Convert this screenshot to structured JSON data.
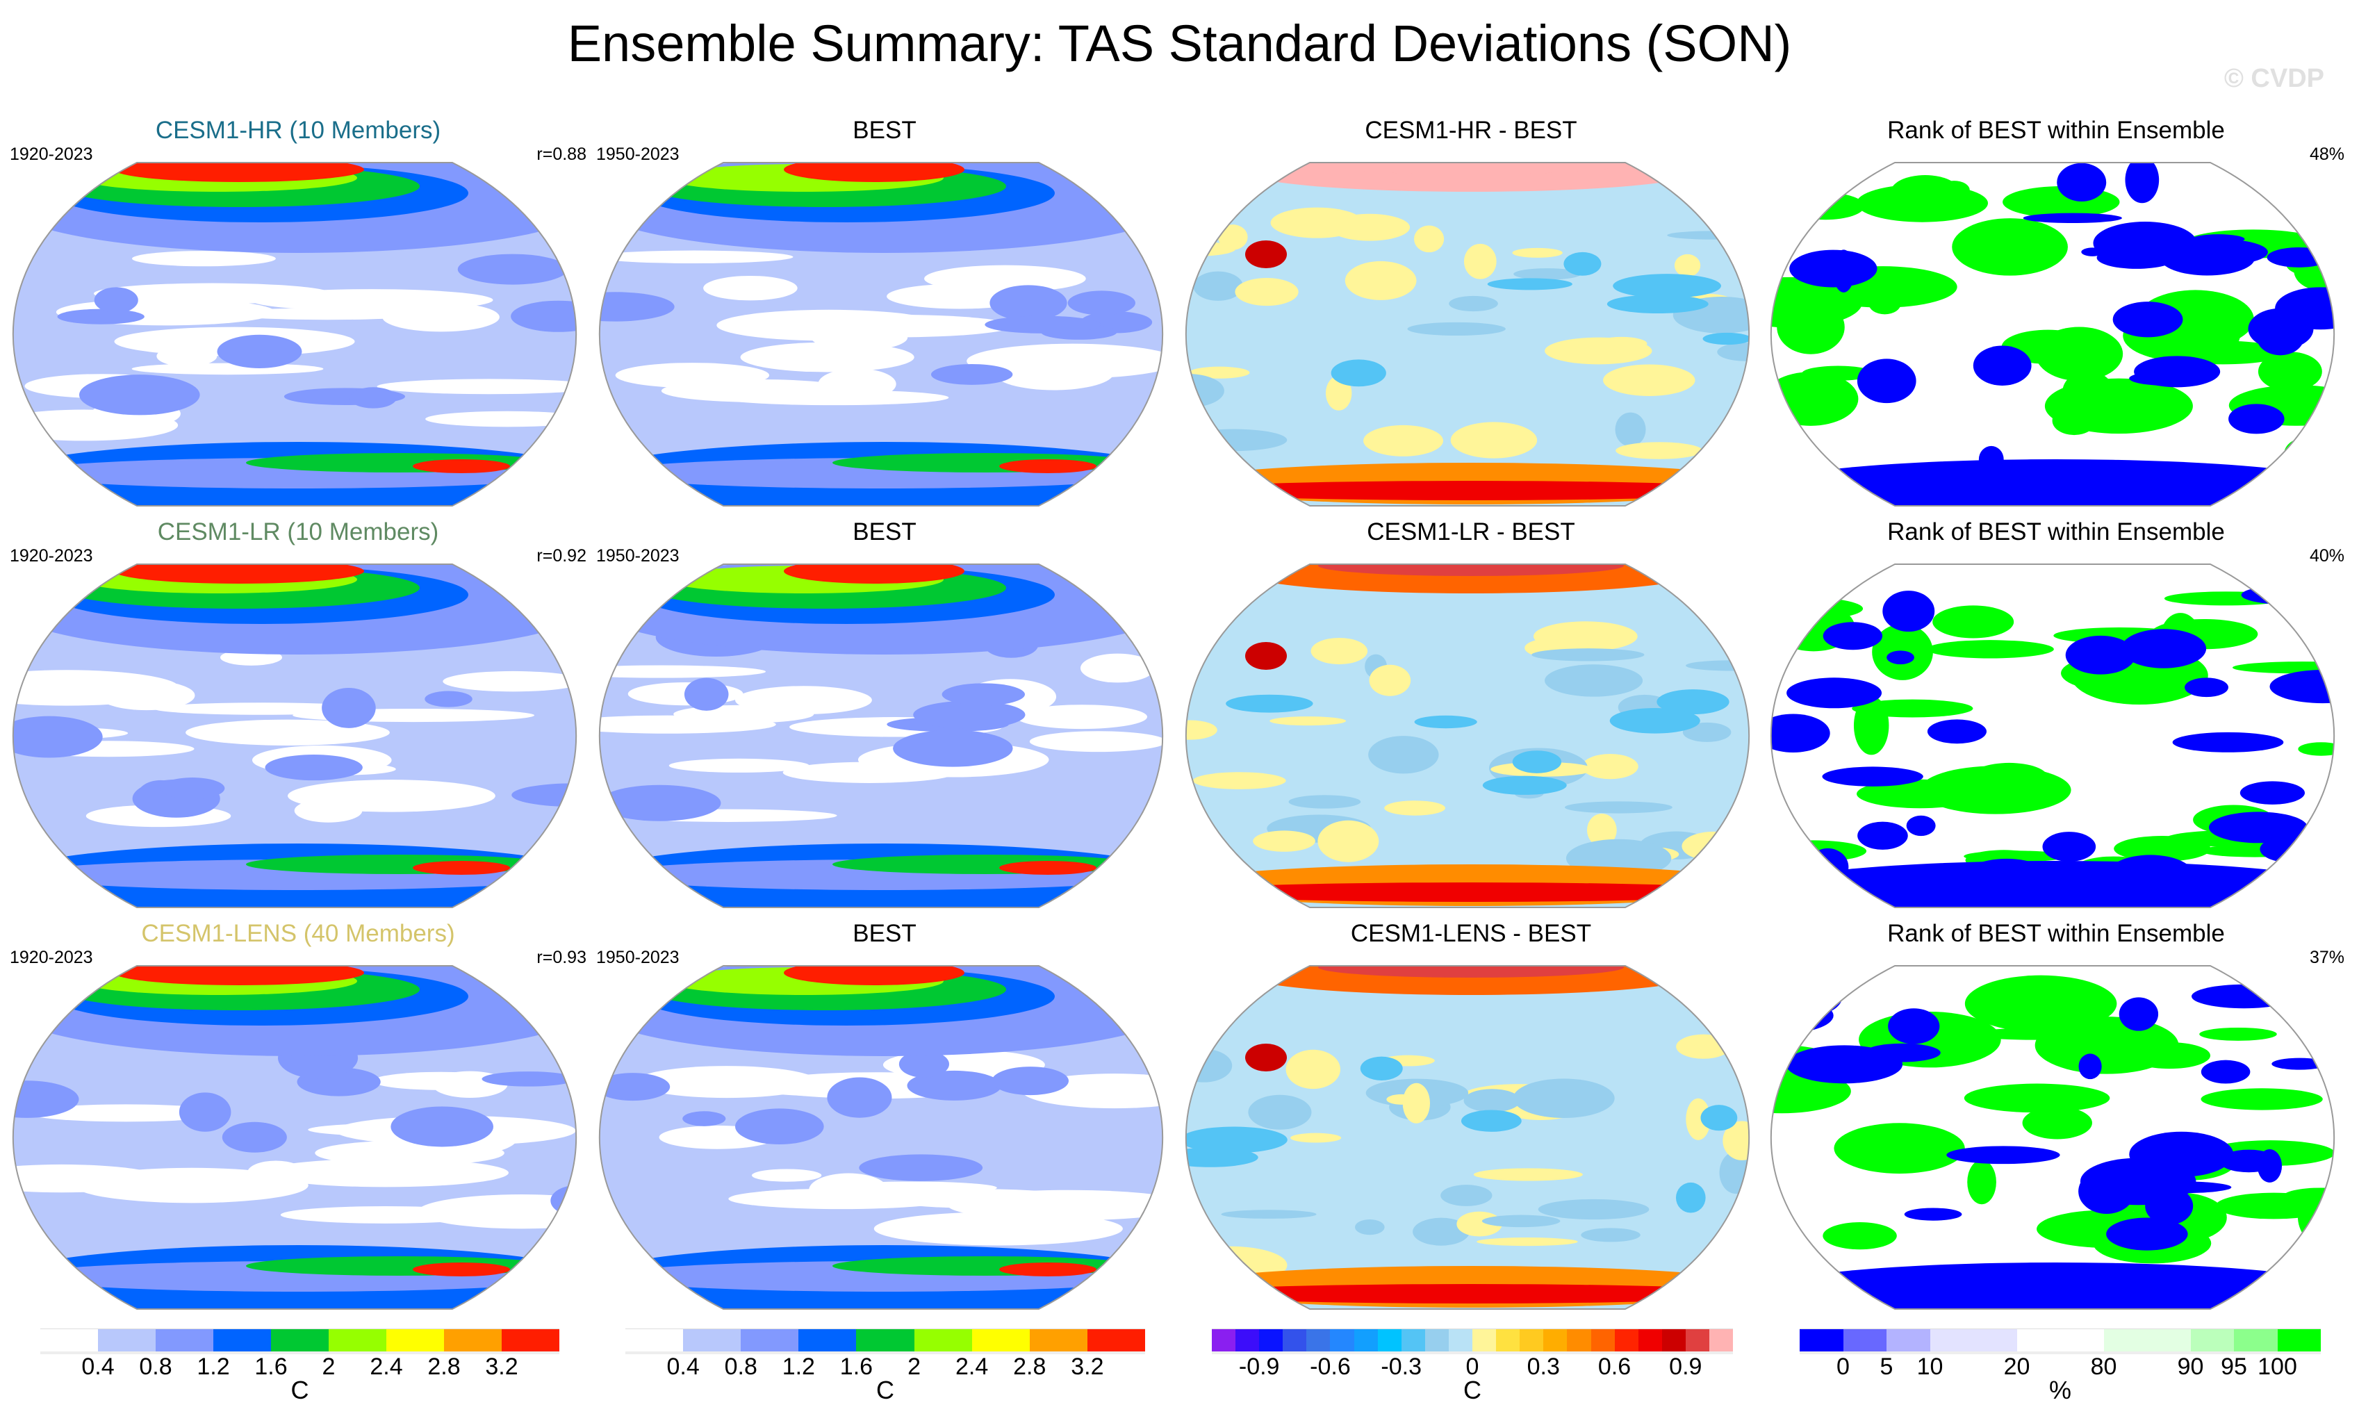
{
  "title": "Ensemble Summary: TAS Standard Deviations (SON)",
  "watermark": "© CVDP",
  "chart_data": {
    "type": "heatmap",
    "title": "Ensemble Summary: TAS Standard Deviations (SON)",
    "rows": [
      {
        "panels": [
          {
            "kind": "model",
            "title": "CESM1-HR (10 Members)",
            "title_color": "#1a6e8a",
            "period": "1920-2023",
            "stat": "r=0.88"
          },
          {
            "kind": "obs",
            "title": "BEST",
            "period": "1950-2023",
            "stat": ""
          },
          {
            "kind": "diff",
            "title": "CESM1-HR - BEST",
            "period": "",
            "stat": ""
          },
          {
            "kind": "rank",
            "title": "Rank of BEST within Ensemble",
            "period": "",
            "stat": "48%"
          }
        ]
      },
      {
        "panels": [
          {
            "kind": "model",
            "title": "CESM1-LR (10 Members)",
            "title_color": "#5f8a62",
            "period": "1920-2023",
            "stat": "r=0.92"
          },
          {
            "kind": "obs",
            "title": "BEST",
            "period": "1950-2023",
            "stat": ""
          },
          {
            "kind": "diff",
            "title": "CESM1-LR - BEST",
            "period": "",
            "stat": ""
          },
          {
            "kind": "rank",
            "title": "Rank of BEST within Ensemble",
            "period": "",
            "stat": "40%"
          }
        ]
      },
      {
        "panels": [
          {
            "kind": "model",
            "title": "CESM1-LENS (40 Members)",
            "title_color": "#d4c46a",
            "period": "1920-2023",
            "stat": "r=0.93"
          },
          {
            "kind": "obs",
            "title": "BEST",
            "period": "1950-2023",
            "stat": ""
          },
          {
            "kind": "diff",
            "title": "CESM1-LENS - BEST",
            "period": "",
            "stat": ""
          },
          {
            "kind": "rank",
            "title": "Rank of BEST within Ensemble",
            "period": "",
            "stat": "37%"
          }
        ]
      }
    ],
    "colorbars": [
      {
        "unit": "C",
        "ticks": [
          "0.4",
          "0.8",
          "1.2",
          "1.6",
          "2",
          "2.4",
          "2.8",
          "3.2"
        ],
        "colors": [
          "#ffffff",
          "#b8c8fc",
          "#8299fe",
          "#0064ff",
          "#00c832",
          "#96ff00",
          "#ffff00",
          "#ffa000",
          "#ff1e00"
        ]
      },
      {
        "unit": "C",
        "ticks": [
          "0.4",
          "0.8",
          "1.2",
          "1.6",
          "2",
          "2.4",
          "2.8",
          "3.2"
        ],
        "colors": [
          "#ffffff",
          "#b8c8fc",
          "#8299fe",
          "#0064ff",
          "#00c832",
          "#96ff00",
          "#ffff00",
          "#ffa000",
          "#ff1e00"
        ]
      },
      {
        "unit": "C",
        "ticks": [
          "-0.9",
          "-0.6",
          "-0.3",
          "0",
          "0.3",
          "0.6",
          "0.9"
        ],
        "colors": [
          "#8a1ff0",
          "#3c0dfa",
          "#0a14ff",
          "#3352eb",
          "#3a74e8",
          "#2487fe",
          "#129ffe",
          "#00c3ff",
          "#54c4f5",
          "#97cfee",
          "#b9e2f6",
          "#fff599",
          "#ffe140",
          "#ffca20",
          "#ffad00",
          "#ff8c00",
          "#ff6400",
          "#ff2400",
          "#f00000",
          "#cc0000",
          "#e04040",
          "#ffb3b3"
        ]
      },
      {
        "unit": "%",
        "ticks": [
          "0",
          "5",
          "10",
          "20",
          "80",
          "90",
          "95",
          "100"
        ],
        "colors": [
          "#0000ff",
          "#6868ff",
          "#b3b3ff",
          "#e3e3ff",
          "#ffffff",
          "#e3ffe3",
          "#bbffbb",
          "#8cff8c",
          "#00ff00"
        ],
        "weights": [
          1,
          1,
          1,
          2,
          2,
          2,
          1,
          1,
          1
        ]
      }
    ]
  }
}
